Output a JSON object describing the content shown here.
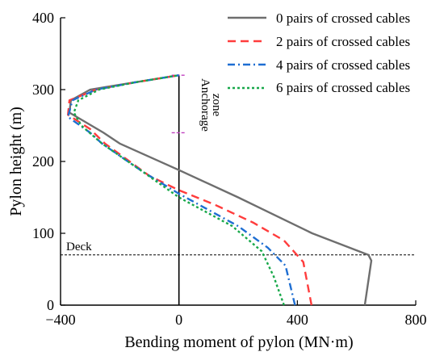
{
  "chart_data": {
    "type": "line",
    "title": "",
    "xlabel": "Bending moment of pylon (MN·m)",
    "ylabel": "Pylon height (m)",
    "xlim": [
      -400,
      800
    ],
    "ylim": [
      0,
      400
    ],
    "xticks": [
      "−400",
      "0",
      "400",
      "800"
    ],
    "yticks": [
      "0",
      "100",
      "200",
      "300",
      "400"
    ],
    "xtick_values": [
      -400,
      0,
      400,
      800
    ],
    "ytick_values": [
      0,
      100,
      200,
      300,
      400
    ],
    "grid": false,
    "legend_position": "top-right",
    "series": [
      {
        "name": "0 pairs of crossed cables",
        "color": "#6e6e6e",
        "dash": "solid",
        "points": [
          [
            628,
            0
          ],
          [
            650,
            62
          ],
          [
            640,
            70
          ],
          [
            450,
            100
          ],
          [
            200,
            150
          ],
          [
            0,
            188
          ],
          [
            -200,
            225
          ],
          [
            -255,
            240
          ],
          [
            -370,
            268
          ],
          [
            -365,
            285
          ],
          [
            -300,
            300
          ],
          [
            -150,
            310
          ],
          [
            0,
            320
          ]
        ]
      },
      {
        "name": "2 pairs of crossed cables",
        "color": "#ff3c3c",
        "dash": "dashed",
        "points": [
          [
            448,
            0
          ],
          [
            420,
            60
          ],
          [
            355,
            90
          ],
          [
            250,
            115
          ],
          [
            120,
            140
          ],
          [
            0,
            160
          ],
          [
            -100,
            180
          ],
          [
            -250,
            225
          ],
          [
            -300,
            245
          ],
          [
            -375,
            265
          ],
          [
            -370,
            285
          ],
          [
            -280,
            300
          ],
          [
            -150,
            310
          ],
          [
            0,
            320
          ]
        ]
      },
      {
        "name": "4 pairs of crossed cables",
        "color": "#1e6ed2",
        "dash": "dashdot",
        "points": [
          [
            392,
            0
          ],
          [
            360,
            55
          ],
          [
            300,
            80
          ],
          [
            200,
            110
          ],
          [
            0,
            155
          ],
          [
            -120,
            185
          ],
          [
            -260,
            225
          ],
          [
            -300,
            240
          ],
          [
            -375,
            262
          ],
          [
            -360,
            285
          ],
          [
            -280,
            300
          ],
          [
            -150,
            310
          ],
          [
            0,
            320
          ]
        ]
      },
      {
        "name": "6 pairs of crossed cables",
        "color": "#18a84a",
        "dash": "dotted",
        "points": [
          [
            355,
            0
          ],
          [
            320,
            40
          ],
          [
            280,
            75
          ],
          [
            180,
            110
          ],
          [
            0,
            150
          ],
          [
            -120,
            185
          ],
          [
            -260,
            225
          ],
          [
            -330,
            250
          ],
          [
            -355,
            268
          ],
          [
            -340,
            285
          ],
          [
            -270,
            300
          ],
          [
            -150,
            310
          ],
          [
            0,
            320
          ]
        ]
      }
    ],
    "annotations": {
      "deck_label": "Deck",
      "deck_height": 70,
      "anchorage_label": "Anchorage",
      "anchorage_label2": "zone",
      "anchorage_range": [
        240,
        320
      ]
    }
  }
}
